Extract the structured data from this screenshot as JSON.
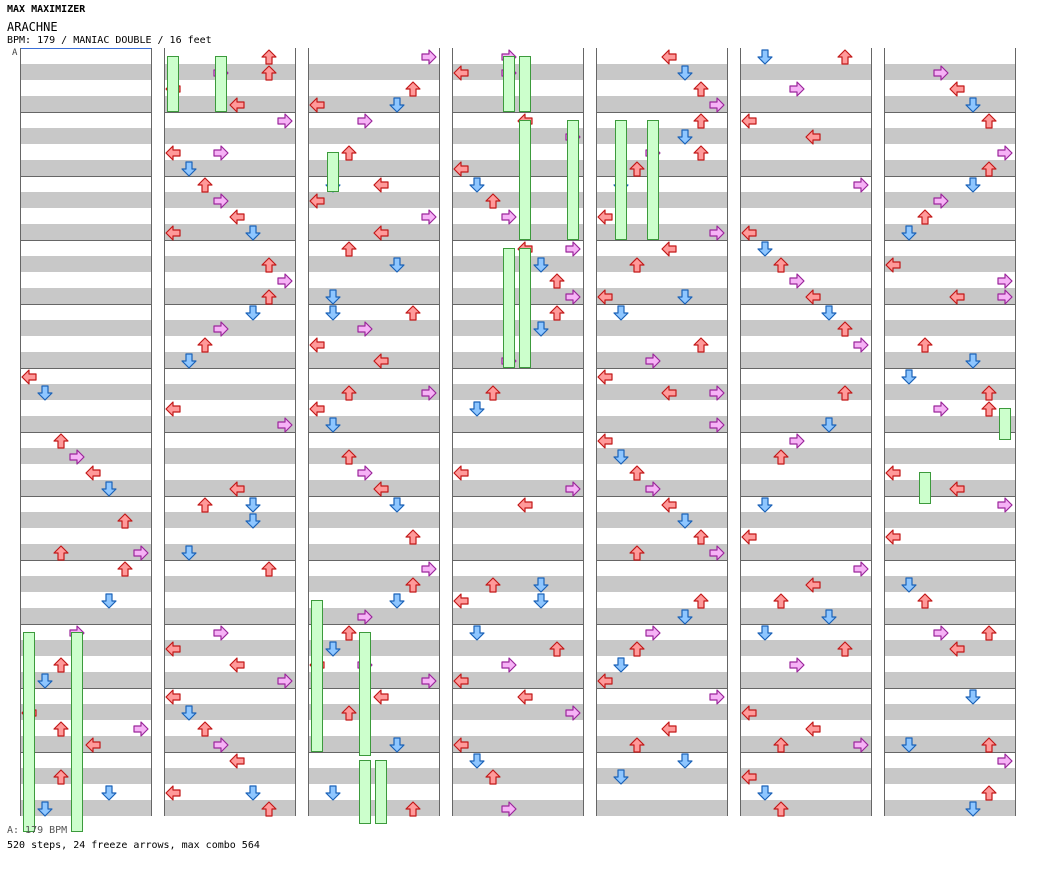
{
  "header": {
    "series": "MAX MAXIMIZER",
    "title": "ARACHNE",
    "info": "BPM: 179 / MANIAC DOUBLE / 16 feet"
  },
  "marker_label": "A",
  "footer": {
    "bpm_text": "A: 179 BPM",
    "stats_text": "520 steps, 24 freeze arrows, max combo 564"
  },
  "chart": {
    "columns": 7,
    "measures_per_column": 12,
    "lanes": 8,
    "colors": {
      "left": "#ff9a9a",
      "left_edge": "#c21818",
      "down": "#8ec6ff",
      "down_edge": "#1a62b8",
      "up": "#ff9a9a",
      "up_edge": "#c21818",
      "right": "#f6b2f6",
      "right_edge": "#9b269b",
      "freeze_fill": "#ccffcc",
      "freeze_edge": "#3c9a3c",
      "stripe": "#c8c8c8"
    },
    "step_pattern": [
      0,
      1,
      2,
      3,
      4,
      5,
      6,
      7,
      6,
      5,
      3,
      2,
      1,
      0,
      7,
      4,
      2,
      5,
      1,
      6,
      3,
      0,
      4,
      7
    ]
  }
}
